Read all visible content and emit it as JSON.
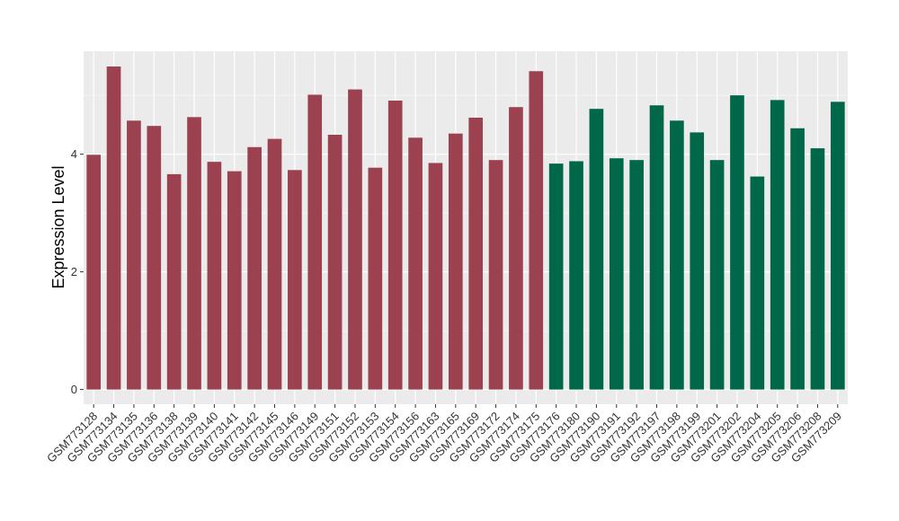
{
  "chart_data": {
    "type": "bar",
    "ylabel": "Expression Level",
    "xlabel": "",
    "ylim": [
      -0.25,
      5.75
    ],
    "yticks": [
      0,
      2,
      4
    ],
    "grid": true,
    "legend": "none",
    "panel_background": "#ebebeb",
    "gridline_color": "#ffffff",
    "group_colors": {
      "group1": "#9b4150",
      "group2": "#006848"
    },
    "categories": [
      "GSM773128",
      "GSM773134",
      "GSM773135",
      "GSM773136",
      "GSM773138",
      "GSM773139",
      "GSM773140",
      "GSM773141",
      "GSM773142",
      "GSM773145",
      "GSM773146",
      "GSM773149",
      "GSM773151",
      "GSM773152",
      "GSM773153",
      "GSM773154",
      "GSM773156",
      "GSM773163",
      "GSM773165",
      "GSM773169",
      "GSM773172",
      "GSM773174",
      "GSM773175",
      "GSM773176",
      "GSM773180",
      "GSM773190",
      "GSM773191",
      "GSM773192",
      "GSM773197",
      "GSM773198",
      "GSM773199",
      "GSM773201",
      "GSM773202",
      "GSM773204",
      "GSM773205",
      "GSM773206",
      "GSM773208",
      "GSM773209"
    ],
    "values": [
      3.99,
      5.49,
      4.57,
      4.48,
      3.66,
      4.63,
      3.87,
      3.71,
      4.12,
      4.26,
      3.73,
      5.01,
      4.33,
      5.1,
      3.77,
      4.91,
      4.28,
      3.85,
      4.35,
      4.62,
      3.9,
      4.8,
      5.41,
      3.84,
      3.88,
      4.77,
      3.93,
      3.9,
      4.83,
      4.57,
      4.37,
      3.9,
      5.0,
      3.62,
      4.92,
      4.44,
      4.1,
      4.89
    ],
    "groups": [
      "group1",
      "group1",
      "group1",
      "group1",
      "group1",
      "group1",
      "group1",
      "group1",
      "group1",
      "group1",
      "group1",
      "group1",
      "group1",
      "group1",
      "group1",
      "group1",
      "group1",
      "group1",
      "group1",
      "group1",
      "group1",
      "group1",
      "group1",
      "group2",
      "group2",
      "group2",
      "group2",
      "group2",
      "group2",
      "group2",
      "group2",
      "group2",
      "group2",
      "group2",
      "group2",
      "group2",
      "group2",
      "group2"
    ]
  }
}
